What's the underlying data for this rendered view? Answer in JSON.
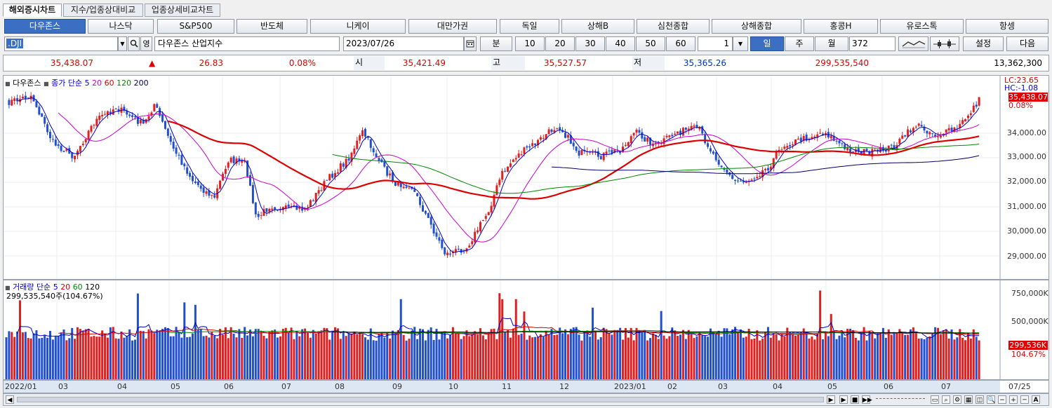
{
  "tabs": [
    "해외증시차트",
    "지수/업종상대비교",
    "업종상세비교차트"
  ],
  "indices": [
    "다우존스",
    "나스닥",
    "S&P500",
    "반도체",
    "니케이",
    "대만가권",
    "독일",
    "상해B",
    "심천종합",
    "상해종합",
    "홍콩H",
    "유로스톡",
    "항셍"
  ],
  "controls": {
    "symbol": ".DJI",
    "symbol_name": "다우존스 산업지수",
    "date": "2023/07/26",
    "minute_label": "분",
    "intervals": [
      "10",
      "20",
      "30",
      "40",
      "50",
      "60"
    ],
    "period_count": "1",
    "day_label": "일",
    "week_label": "주",
    "month_label": "월",
    "bar_count": "372",
    "settings_label": "설정",
    "next_label": "다음"
  },
  "quote": {
    "last": "35,438.07",
    "change_arrow": "▲",
    "change": "26.83",
    "change_pct": "0.08%",
    "open_label": "시",
    "open": "35,421.49",
    "high_label": "고",
    "high": "35,527.57",
    "low_label": "저",
    "low": "35,365.26",
    "volume": "299,535,540",
    "amount": "13,362,300"
  },
  "price_panel": {
    "legend_name": "다우존스",
    "legend_ma_label": "종가 단순",
    "legend_ma": [
      "5",
      "20",
      "60",
      "120",
      "200"
    ],
    "ma_colors": [
      "#0000cc",
      "#cc00cc",
      "#dd0000",
      "#008800",
      "#000066"
    ],
    "lc_label": "LC:23.65",
    "hc_label": "HC:-1.08",
    "last_tag": "35,438.07",
    "pct_tag": "0.08%",
    "y_ticks": [
      "34,000.00",
      "33,000.00",
      "32,000.00",
      "31,000.00",
      "30,000.00",
      "29,000.00"
    ]
  },
  "volume_panel": {
    "legend_name": "거래량",
    "legend_ma_label": "단순",
    "legend_ma": [
      "5",
      "20",
      "60",
      "120"
    ],
    "info": "299,535,540주(104.67%)",
    "y_ticks": [
      "750,000K",
      "500,000K"
    ],
    "last_tag": "299,536K",
    "pct_tag": "104.67%"
  },
  "x_axis": [
    "2022/01",
    "03",
    "04",
    "05",
    "06",
    "07",
    "08",
    "09",
    "10",
    "11",
    "12",
    "2023/01",
    "02",
    "03",
    "04",
    "05",
    "06",
    "07"
  ],
  "x_end": "07/25",
  "colors": {
    "up": "#e02020",
    "down": "#2050d0",
    "active": "#3b6fc4"
  }
}
